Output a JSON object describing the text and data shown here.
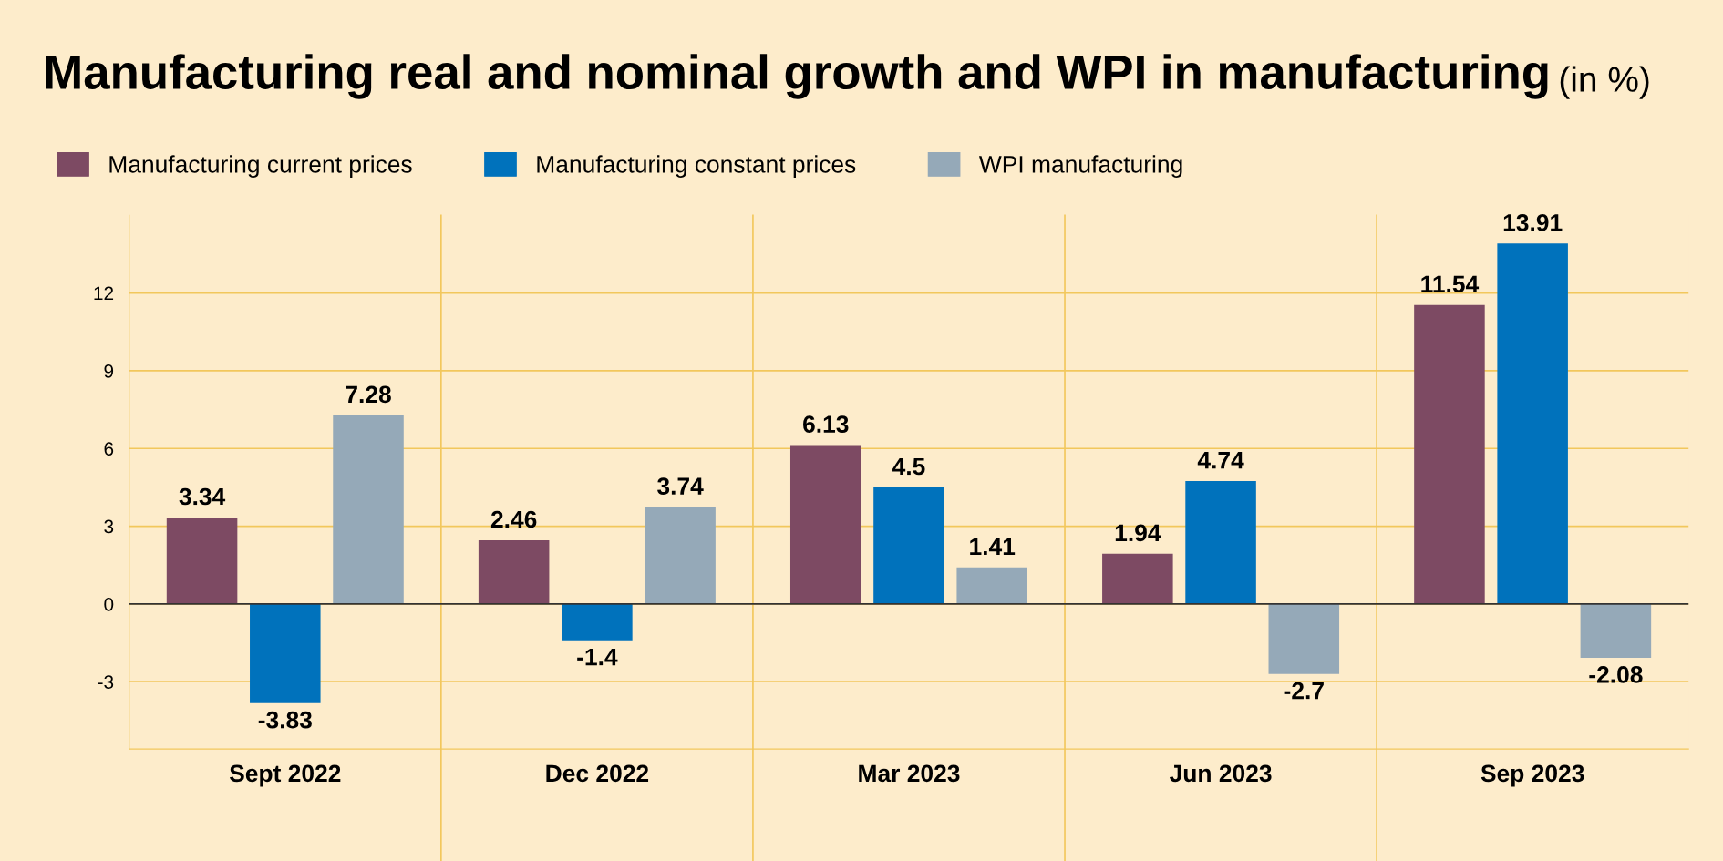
{
  "chart_data": {
    "type": "bar",
    "title": "Manufacturing real and nominal growth and WPI in manufacturing",
    "subtitle": "(in %)",
    "categories": [
      "Sept 2022",
      "Dec 2022",
      "Mar 2023",
      "Jun 2023",
      "Sep 2023"
    ],
    "series": [
      {
        "name": "Manufacturing current prices",
        "color": "#7d4a63",
        "values": [
          3.34,
          2.46,
          6.13,
          1.94,
          11.54
        ]
      },
      {
        "name": "Manufacturing constant prices",
        "color": "#0072bc",
        "values": [
          -3.83,
          -1.4,
          4.5,
          4.74,
          13.91
        ]
      },
      {
        "name": "WPI manufacturing",
        "color": "#95a9b8",
        "values": [
          7.28,
          3.74,
          1.41,
          -2.7,
          -2.08
        ]
      }
    ],
    "ylim": [
      -5.6,
      15
    ],
    "yticks": [
      {
        "value": -3,
        "label": "-3"
      },
      0,
      3,
      6,
      9,
      12
    ],
    "grid": true,
    "legend": "top left",
    "data_labels": true
  }
}
